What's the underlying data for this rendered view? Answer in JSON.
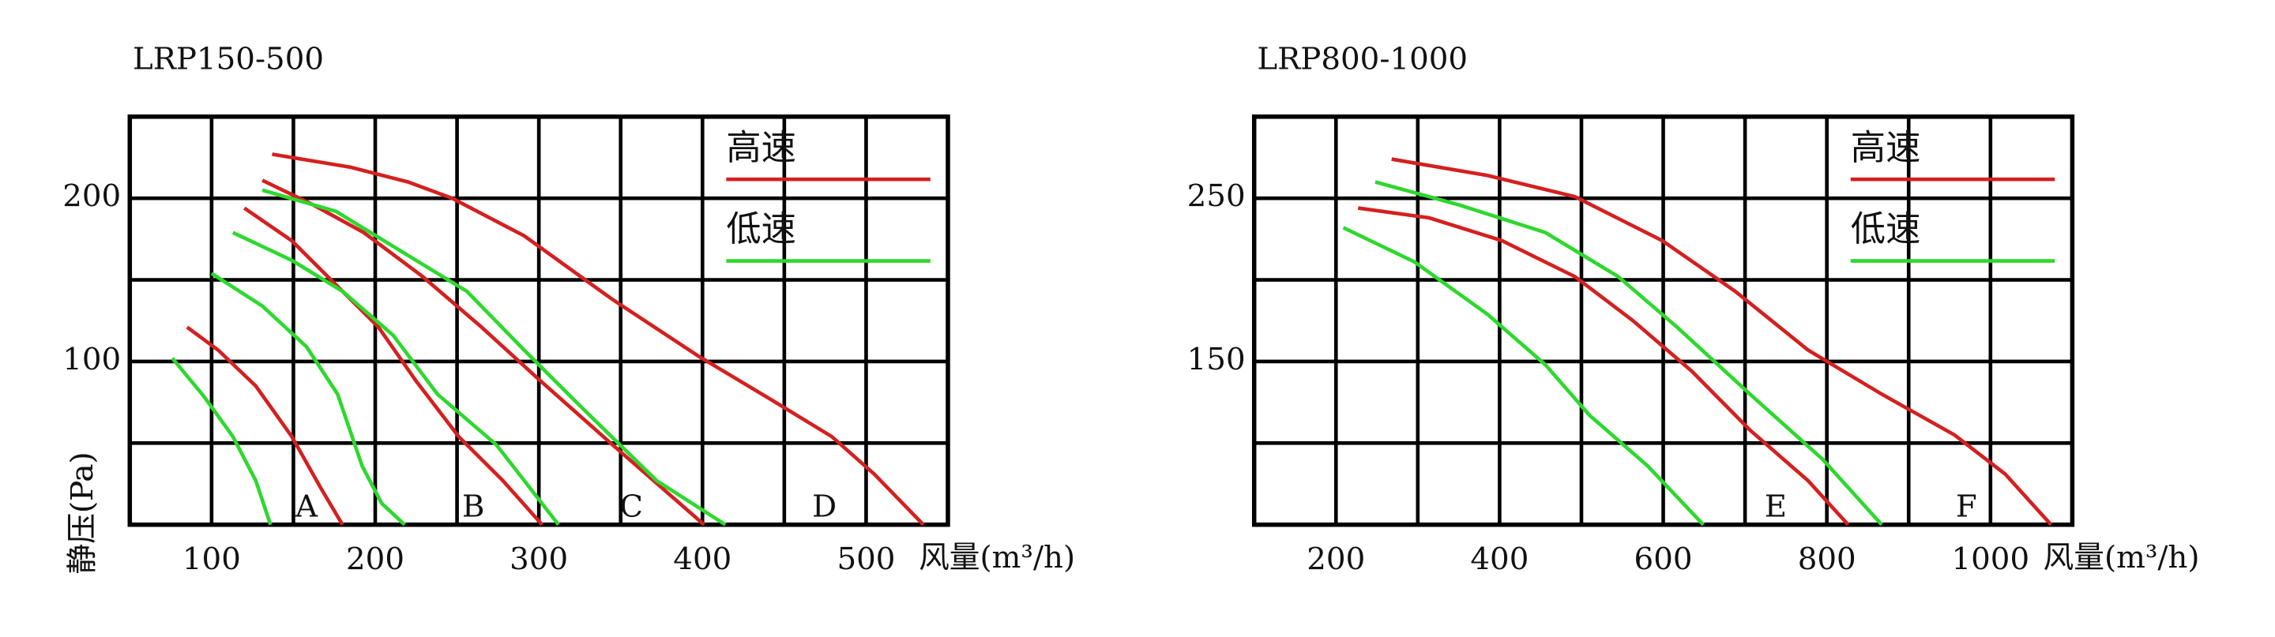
{
  "chart_data": [
    {
      "type": "line",
      "title": "LRP150-500",
      "x_label": "风量(m³/h)",
      "y_label": "静压(Pa)",
      "xlim": [
        50,
        550
      ],
      "ylim": [
        0,
        250
      ],
      "xticks": [
        100,
        200,
        300,
        400,
        500
      ],
      "yticks": [
        100,
        200
      ],
      "x_minor_grid": [
        150,
        250,
        350,
        450
      ],
      "y_minor_grid": [
        50,
        150
      ],
      "grid": true,
      "legend": [
        {
          "name": "高速",
          "color": "#d42020"
        },
        {
          "name": "低速",
          "color": "#2ed82e"
        }
      ],
      "curves": [
        {
          "label": "A",
          "high": {
            "x": [
              85,
              104,
              127,
              149,
              167,
              180
            ],
            "values": [
              121,
              107,
              85,
              54,
              22,
              0
            ]
          },
          "low": {
            "x": [
              76,
              95,
              113,
              127,
              136
            ],
            "values": [
              102,
              79,
              54,
              27,
              0
            ]
          }
        },
        {
          "label": "B",
          "high": {
            "x": [
              120,
              149,
              176,
              202,
              225,
              251,
              278,
              302
            ],
            "values": [
              194,
              174,
              147,
              121,
              88,
              54,
              27,
              0
            ]
          },
          "low": {
            "x": [
              100,
              131,
              158,
              177,
              192,
              204,
              218
            ],
            "values": [
              154,
              134,
              109,
              80,
              36,
              13,
              0
            ]
          }
        },
        {
          "label": "C",
          "high": {
            "x": [
              131,
              162,
              193,
              229,
              265,
              300,
              345,
              401
            ],
            "values": [
              211,
              196,
              179,
              152,
              121,
              89,
              49,
              0
            ]
          },
          "low": {
            "x": [
              113,
              149,
              180,
              211,
              238,
              274,
              312
            ],
            "values": [
              179,
              162,
              143,
              116,
              80,
              49,
              0
            ]
          }
        },
        {
          "label": "D",
          "high": {
            "x": [
              137,
              185,
              220,
              247,
              291,
              345,
              398,
              443,
              479,
              505,
              535
            ],
            "values": [
              227,
              219,
              210,
              200,
              177,
              138,
              103,
              76,
              54,
              31,
              0
            ]
          },
          "low": {
            "x": [
              131,
              176,
              220,
              256,
              291,
              327,
              372,
              414
            ],
            "values": [
              205,
              192,
              165,
              143,
              107,
              71,
              27,
              0
            ]
          }
        }
      ]
    },
    {
      "type": "line",
      "title": "LRP800-1000",
      "x_label": "风量(m³/h)",
      "y_label": "静压(Pa)",
      "xlim": [
        100,
        1100
      ],
      "ylim": [
        50,
        300
      ],
      "xticks": [
        200,
        400,
        600,
        800,
        1000
      ],
      "yticks": [
        150,
        250
      ],
      "x_minor_grid": [
        300,
        500,
        700,
        900
      ],
      "y_minor_grid": [
        100,
        200
      ],
      "grid": true,
      "legend": [
        {
          "name": "高速",
          "color": "#d42020"
        },
        {
          "name": "低速",
          "color": "#2ed82e"
        }
      ],
      "curves": [
        {
          "label": "E",
          "high": {
            "x": [
              227,
              314,
              403,
              492,
              563,
              635,
              706,
              777,
              826
            ],
            "values": [
              244,
              238,
              224,
              202,
              175,
              144,
              108,
              77,
              50
            ]
          },
          "low": {
            "x": [
              209,
              296,
              385,
              456,
              510,
              581,
              649
            ],
            "values": [
              232,
              211,
              179,
              148,
              117,
              86,
              50
            ]
          }
        },
        {
          "label": "F",
          "high": {
            "x": [
              268,
              385,
              492,
              599,
              688,
              777,
              867,
              956,
              1018,
              1074
            ],
            "values": [
              274,
              264,
              251,
              224,
              193,
              157,
              130,
              105,
              81,
              50
            ]
          },
          "low": {
            "x": [
              248,
              350,
              456,
              545,
              617,
              706,
              795,
              867
            ],
            "values": [
              260,
              246,
              229,
              202,
              171,
              130,
              90,
              50
            ]
          }
        }
      ]
    }
  ]
}
